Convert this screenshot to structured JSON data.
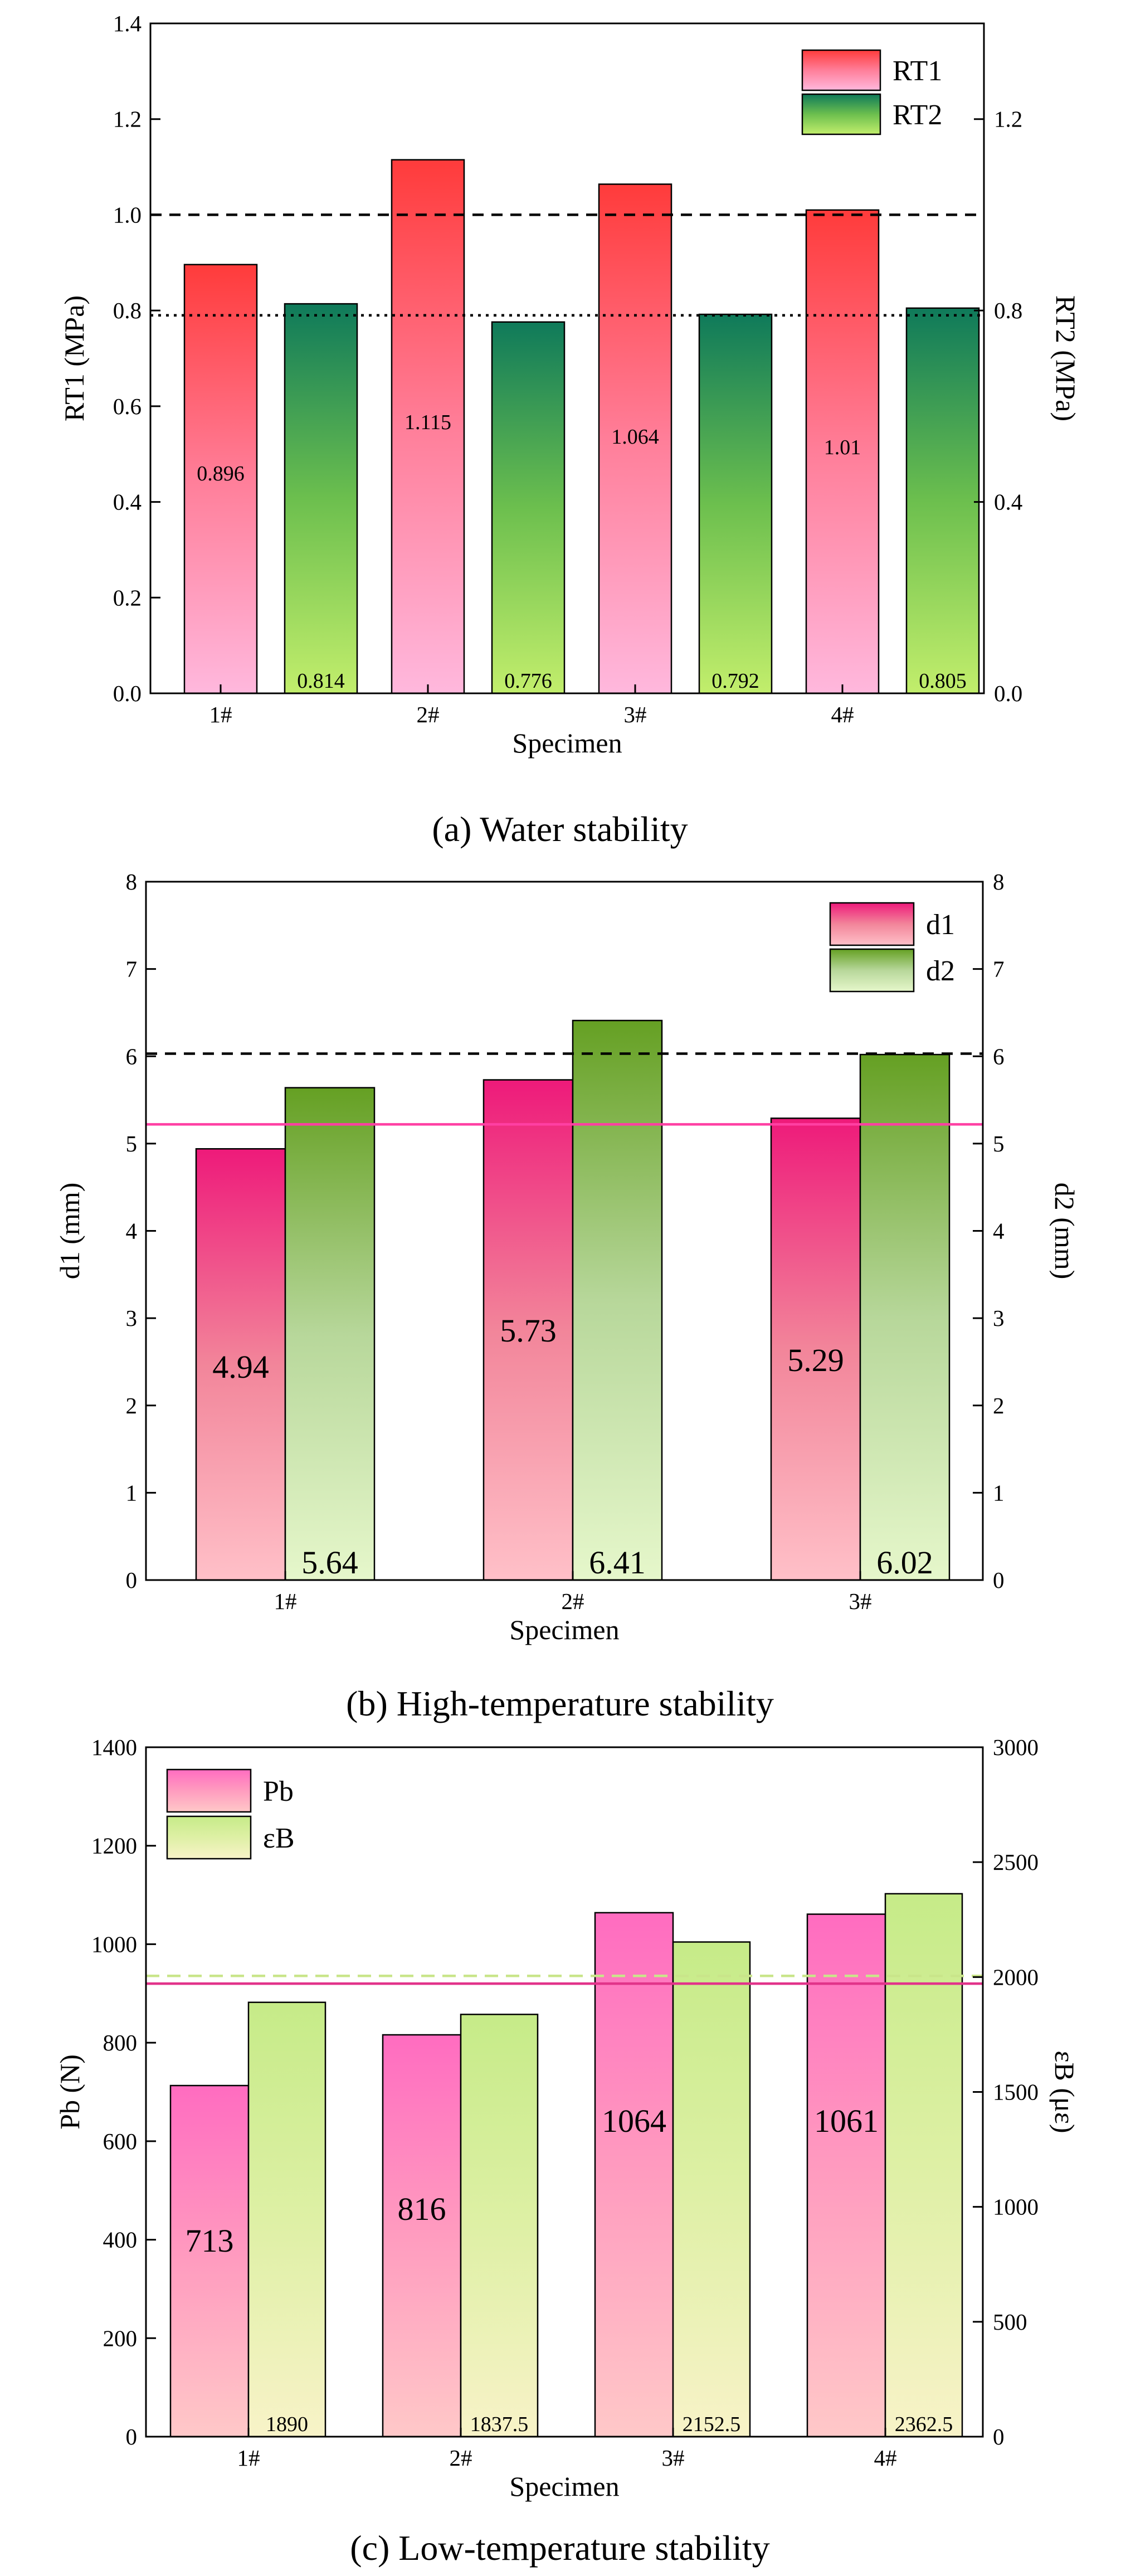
{
  "charts": [
    {
      "caption": "(a) Water stability",
      "chart_data": {
        "type": "bar",
        "categories": [
          "1#",
          "2#",
          "3#",
          "4#"
        ],
        "xlabel": "Specimen",
        "ylabel_left": "RT1 (MPa)",
        "ylabel_right": "RT2 (MPa)",
        "left_ylim": [
          0,
          1.4
        ],
        "left_ticks": [
          "0.0",
          "0.2",
          "0.4",
          "0.6",
          "0.8",
          "1.0",
          "1.2",
          "1.4"
        ],
        "right_ylim": [
          0,
          1.4
        ],
        "right_ticks": [
          "0.0",
          "0.4",
          "0.8",
          "1.2"
        ],
        "series": [
          {
            "name": "RT1",
            "axis": "left",
            "values": [
              0.896,
              1.115,
              1.064,
              1.01
            ],
            "labels": [
              "0.896",
              "1.115",
              "1.064",
              "1.01"
            ]
          },
          {
            "name": "RT2",
            "axis": "right",
            "values": [
              0.814,
              0.776,
              0.792,
              0.805
            ],
            "labels": [
              "0.814",
              "0.776",
              "0.792",
              "0.805"
            ]
          }
        ],
        "reference_lines": [
          {
            "axis": "left",
            "value": 1.0,
            "style": "dashed",
            "color": "#000000"
          },
          {
            "axis": "left",
            "value": 0.79,
            "style": "dotted",
            "color": "#000000"
          }
        ],
        "legend_position": "top-right"
      }
    },
    {
      "caption": "(b) High-temperature stability",
      "chart_data": {
        "type": "bar",
        "categories": [
          "1#",
          "2#",
          "3#"
        ],
        "xlabel": "Specimen",
        "ylabel_left": "d1 (mm)",
        "ylabel_right": "d2 (mm)",
        "left_ylim": [
          0,
          8
        ],
        "left_ticks": [
          "0",
          "1",
          "2",
          "3",
          "4",
          "5",
          "6",
          "7",
          "8"
        ],
        "right_ylim": [
          0,
          8
        ],
        "right_ticks": [
          "0",
          "1",
          "2",
          "3",
          "4",
          "5",
          "6",
          "7",
          "8"
        ],
        "series": [
          {
            "name": "d1",
            "axis": "left",
            "values": [
              4.94,
              5.73,
              5.29
            ],
            "labels": [
              "4.94",
              "5.73",
              "5.29"
            ]
          },
          {
            "name": "d2",
            "axis": "right",
            "values": [
              5.64,
              6.41,
              6.02
            ],
            "labels": [
              "5.64",
              "6.41",
              "6.02"
            ]
          }
        ],
        "reference_lines": [
          {
            "axis": "left",
            "value": 6.03,
            "style": "dashed",
            "color": "#000000"
          },
          {
            "axis": "left",
            "value": 5.22,
            "style": "solid",
            "color": "#ff3fa3"
          }
        ],
        "legend_position": "top-right"
      }
    },
    {
      "caption": "(c) Low-temperature stability",
      "chart_data": {
        "type": "bar",
        "categories": [
          "1#",
          "2#",
          "3#",
          "4#"
        ],
        "xlabel": "Specimen",
        "ylabel_left": "Pb (N)",
        "ylabel_right": "εB (με)",
        "left_ylim": [
          0,
          1400
        ],
        "left_ticks": [
          "0",
          "200",
          "400",
          "600",
          "800",
          "1000",
          "1200",
          "1400"
        ],
        "right_ylim": [
          0,
          3000
        ],
        "right_ticks": [
          "0",
          "500",
          "1000",
          "1500",
          "2000",
          "2500",
          "3000"
        ],
        "series": [
          {
            "name": "Pb",
            "axis": "left",
            "values": [
              713,
              816,
              1064,
              1061
            ],
            "labels": [
              "713",
              "816",
              "1064",
              "1061"
            ]
          },
          {
            "name": "εB",
            "axis": "right",
            "values": [
              1890,
              1837.5,
              2152.5,
              2362.5
            ],
            "labels": [
              "1890",
              "1837.5",
              "2152.5",
              "2362.5"
            ]
          }
        ],
        "reference_lines": [
          {
            "axis": "right",
            "value": 2005,
            "style": "dashed",
            "color": "#c9e58a"
          },
          {
            "axis": "left",
            "value": 920,
            "style": "solid",
            "color": "#e2338a"
          }
        ],
        "legend_position": "top-left"
      }
    }
  ]
}
